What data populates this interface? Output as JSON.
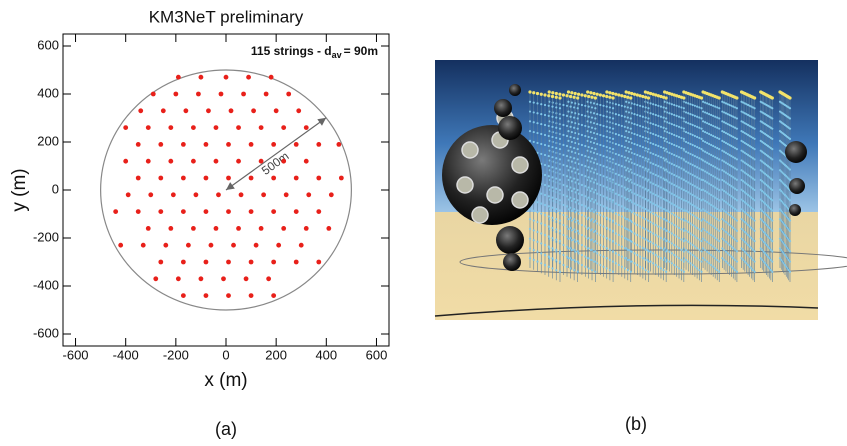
{
  "chart_data": {
    "type": "scatter",
    "title": "KM3NeT preliminary",
    "x_label": "x (m)",
    "y_label": "y (m)",
    "annotation": {
      "text": "115 strings - d",
      "subscript": "av",
      "suffix": "= 90m"
    },
    "radius_label": "500m",
    "circle_radius": 500,
    "color": "#e8201a",
    "xlim": [
      -650,
      650
    ],
    "ylim": [
      -650,
      650
    ],
    "xticks": [
      -600,
      -400,
      -200,
      0,
      200,
      400,
      600
    ],
    "yticks": [
      -600,
      -400,
      -200,
      0,
      200,
      400,
      600
    ],
    "x": [
      -190,
      -100,
      0,
      90,
      180,
      -290,
      -200,
      -110,
      -20,
      70,
      160,
      250,
      -340,
      -250,
      -160,
      -70,
      20,
      110,
      200,
      290,
      -400,
      -310,
      -220,
      -130,
      -40,
      50,
      140,
      230,
      320,
      -350,
      -260,
      -170,
      -80,
      10,
      100,
      190,
      280,
      370,
      450,
      -400,
      -310,
      -220,
      -130,
      -40,
      50,
      140,
      230,
      320,
      -350,
      -260,
      -170,
      -80,
      10,
      100,
      190,
      280,
      370,
      460,
      -390,
      -300,
      -210,
      -120,
      -30,
      60,
      150,
      240,
      330,
      420,
      -440,
      -350,
      -260,
      -170,
      -80,
      10,
      100,
      190,
      280,
      370,
      -310,
      -220,
      -130,
      -40,
      50,
      140,
      230,
      320,
      410,
      -420,
      -330,
      -240,
      -150,
      -60,
      30,
      120,
      210,
      300,
      -260,
      -170,
      -80,
      10,
      100,
      190,
      280,
      370,
      -280,
      -190,
      -100,
      -10,
      80,
      170,
      -170,
      -80,
      10,
      100,
      190
    ],
    "y": [
      470,
      470,
      470,
      470,
      470,
      400,
      400,
      400,
      400,
      400,
      400,
      400,
      330,
      330,
      330,
      330,
      330,
      330,
      330,
      330,
      260,
      260,
      260,
      260,
      260,
      260,
      260,
      260,
      260,
      190,
      190,
      190,
      190,
      190,
      190,
      190,
      190,
      190,
      190,
      120,
      120,
      120,
      120,
      120,
      120,
      120,
      120,
      120,
      50,
      50,
      50,
      50,
      50,
      50,
      50,
      50,
      50,
      50,
      -20,
      -20,
      -20,
      -20,
      -20,
      -20,
      -20,
      -20,
      -20,
      -20,
      -90,
      -90,
      -90,
      -90,
      -90,
      -90,
      -90,
      -90,
      -90,
      -90,
      -160,
      -160,
      -160,
      -160,
      -160,
      -160,
      -160,
      -160,
      -160,
      -230,
      -230,
      -230,
      -230,
      -230,
      -230,
      -230,
      -230,
      -230,
      -300,
      -300,
      -300,
      -300,
      -300,
      -300,
      -300,
      -300,
      -370,
      -370,
      -370,
      -370,
      -370,
      -370,
      -440,
      -440,
      -440,
      -440,
      -440
    ]
  },
  "captions": [
    "(a)",
    "(b)"
  ]
}
